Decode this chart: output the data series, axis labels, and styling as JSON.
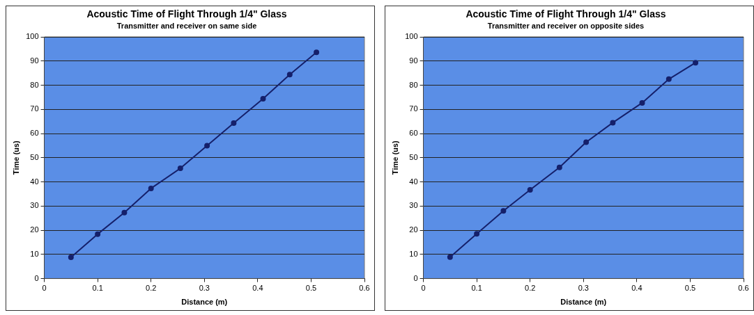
{
  "chart_data": [
    {
      "type": "line",
      "title": "Acoustic Time of Flight Through 1/4\" Glass",
      "subtitle": "Transmitter and receiver on same side",
      "xlabel": "Distance (m)",
      "ylabel": "Time (us)",
      "x": [
        0.05,
        0.1,
        0.15,
        0.2,
        0.255,
        0.305,
        0.355,
        0.41,
        0.46,
        0.51
      ],
      "series": [
        {
          "color": "#15206b",
          "values": [
            8.8,
            18.4,
            27.3,
            37.3,
            45.6,
            55,
            64.3,
            74.4,
            84.4,
            93.6
          ]
        }
      ],
      "xlim": [
        0,
        0.6
      ],
      "xticks": [
        0,
        0.1,
        0.2,
        0.3,
        0.4,
        0.5,
        0.6
      ],
      "ylim": [
        0,
        100
      ],
      "yticks": [
        0,
        10,
        20,
        30,
        40,
        50,
        60,
        70,
        80,
        90,
        100
      ],
      "grid": "y",
      "legend": false,
      "marker": "circle",
      "line_style": "solid"
    },
    {
      "type": "line",
      "title": "Acoustic Time of Flight Through 1/4\" Glass",
      "subtitle": "Transmitter and receiver on opposite sides",
      "xlabel": "Distance (m)",
      "ylabel": "Time (us)",
      "x": [
        0.05,
        0.1,
        0.15,
        0.2,
        0.255,
        0.305,
        0.355,
        0.41,
        0.46,
        0.51
      ],
      "series": [
        {
          "color": "#15206b",
          "values": [
            8.9,
            18.5,
            28,
            36.7,
            46,
            56.4,
            64.5,
            72.7,
            82.5,
            89.3
          ]
        }
      ],
      "xlim": [
        0,
        0.6
      ],
      "xticks": [
        0,
        0.1,
        0.2,
        0.3,
        0.4,
        0.5,
        0.6
      ],
      "ylim": [
        0,
        100
      ],
      "yticks": [
        0,
        10,
        20,
        30,
        40,
        50,
        60,
        70,
        80,
        90,
        100
      ],
      "grid": "y",
      "legend": false,
      "marker": "circle",
      "line_style": "solid"
    }
  ]
}
